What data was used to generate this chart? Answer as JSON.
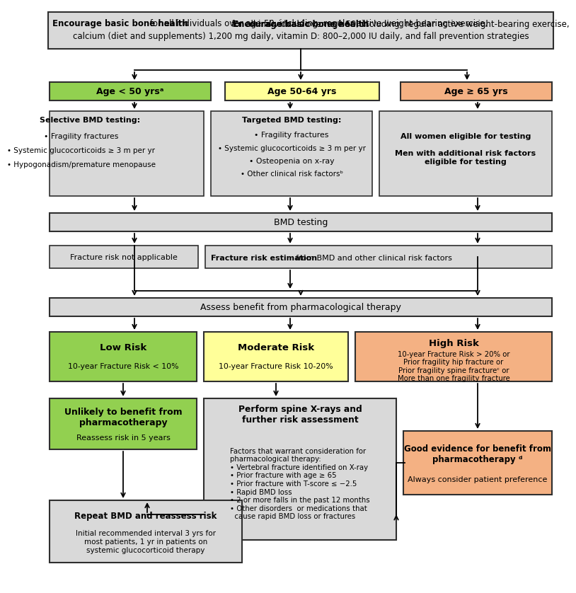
{
  "bg_color": "#ffffff",
  "box_gray_bg": "#d9d9d9",
  "box_green_bg": "#92d050",
  "box_yellow_bg": "#ffff99",
  "box_orange_bg": "#f4b183",
  "top_bold": "Encourage basic bone health",
  "top_rest": " for all individuals over age 50, including: regular active weight-bearing exercise,\ncalcium (diet and supplements) 1,200 mg daily, vitamin D: 800–2,000 IU daily, and fall prevention strategies",
  "age_texts": [
    "Age < 50 yrsᵃ",
    "Age 50-64 yrs",
    "Age ≥ 65 yrs"
  ],
  "age_colors": [
    "#92d050",
    "#ffff99",
    "#f4b183"
  ],
  "selective_text": "Selective BMD testing:\n• Fragility fractures\n• Systemic glucocorticoids ≥ 3 m per yr\n• Hypogonadism/premature menopause",
  "targeted_text": "Targeted BMD testing:\n• Fragility fractures\n• Systemic glucocorticoids ≥ 3 m per yr\n• Osteopenia on x-ray\n• Other clinical risk factorsᵇ",
  "allwomen_text": "All women eligible for testing\n\nMen with additional risk factors\neligible for testing",
  "bmd_text": "BMD testing",
  "frac_na_text": "Fracture risk not applicable",
  "frac_est_bold": "Fracture risk estimation",
  "frac_est_rest": "  from BMD and other clinical risk factors",
  "assess_text": "Assess benefit from pharmacological therapy",
  "low_risk_label": "Low Risk",
  "low_risk_sub": "10-year Fracture Risk < 10%",
  "mod_risk_label": "Moderate Risk",
  "mod_risk_sub": "10-year Fracture Risk 10-20%",
  "high_risk_label": "High Risk",
  "high_risk_sub": "10-year Fracture Risk > 20% or\nPrior fragility hip fracture or\nPrior fragility spine fractureᶜ or\nMore than one fragility fracture",
  "unlikely_title": "Unlikely to benefit from\npharmacotherapy",
  "unlikely_sub": "Reassess risk in 5 years",
  "perform_title": "Perform spine X-rays and\nfurther risk assessment",
  "perform_body": "Factors that warrant consideration for\npharmacological therapy:\n• Vertebral fracture identified on X-ray\n• Prior fracture with age ≥ 65\n• Prior fracture with T-score ≤ −2.5\n• Rapid BMD loss\n• 2 or more falls in the past 12 months\n• Other disorders  or medications that\n  cause rapid BMD loss or fractures",
  "repeat_title": "Repeat BMD and reassess risk",
  "repeat_body": "Initial recommended interval 3 yrs for\nmost patients, 1 yr in patients on\nsystemic glucocorticoid therapy",
  "good_title": "Good evidence for benefit from\npharmacotherapy ᵈ",
  "good_sub": "Always consider patient preference"
}
